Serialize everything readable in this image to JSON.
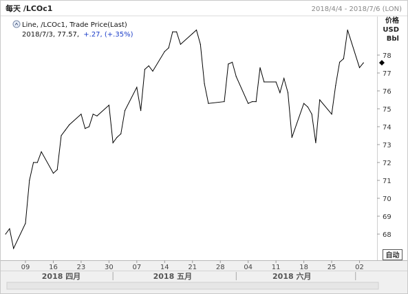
{
  "header": {
    "title": "每天 /LCOc1",
    "date_range": "2018/4/4 - 2018/7/6 (LON)"
  },
  "legend": {
    "series_label": "Line, /LCOc1, Trade Price(Last)",
    "last_point": "2018/7/3, 77.57,",
    "change": "+.27, (+.35%)"
  },
  "axis": {
    "units": [
      "价格",
      "USD",
      "Bbl"
    ],
    "y_ticks": [
      "78",
      "77",
      "76",
      "75",
      "74",
      "73",
      "72",
      "71",
      "70",
      "69",
      "68"
    ],
    "x_ticks": [
      "09",
      "16",
      "23",
      "30",
      "07",
      "14",
      "21",
      "28",
      "04",
      "11",
      "18",
      "25",
      "02"
    ],
    "months": [
      "2018 四月",
      "2018 五月",
      "2018 六月"
    ],
    "auto_button": "自动"
  },
  "colors": {
    "line": "#000000",
    "change_text": "#1a3cc8",
    "frame": "#c8c8c8",
    "axis_bg": "#f0f0f0"
  },
  "chart_data": {
    "type": "line",
    "title": "每天 /LCOc1",
    "xlabel": "",
    "ylabel": "价格 USD Bbl",
    "ylim": [
      67.4,
      79
    ],
    "grid": false,
    "series": [
      {
        "name": "/LCOc1",
        "x": [
          "2018-04-04",
          "2018-04-05",
          "2018-04-06",
          "2018-04-09",
          "2018-04-10",
          "2018-04-11",
          "2018-04-12",
          "2018-04-13",
          "2018-04-16",
          "2018-04-17",
          "2018-04-18",
          "2018-04-19",
          "2018-04-20",
          "2018-04-23",
          "2018-04-24",
          "2018-04-25",
          "2018-04-26",
          "2018-04-27",
          "2018-04-30",
          "2018-05-01",
          "2018-05-02",
          "2018-05-03",
          "2018-05-04",
          "2018-05-07",
          "2018-05-08",
          "2018-05-09",
          "2018-05-10",
          "2018-05-11",
          "2018-05-14",
          "2018-05-15",
          "2018-05-16",
          "2018-05-17",
          "2018-05-18",
          "2018-05-21",
          "2018-05-22",
          "2018-05-23",
          "2018-05-24",
          "2018-05-25",
          "2018-05-29",
          "2018-05-30",
          "2018-05-31",
          "2018-06-01",
          "2018-06-04",
          "2018-06-05",
          "2018-06-06",
          "2018-06-07",
          "2018-06-08",
          "2018-06-11",
          "2018-06-12",
          "2018-06-13",
          "2018-06-14",
          "2018-06-15",
          "2018-06-18",
          "2018-06-19",
          "2018-06-20",
          "2018-06-21",
          "2018-06-22",
          "2018-06-25",
          "2018-06-26",
          "2018-06-27",
          "2018-06-28",
          "2018-06-29",
          "2018-07-02",
          "2018-07-03"
        ],
        "values": [
          68.0,
          68.3,
          67.2,
          68.6,
          71.0,
          72.0,
          72.0,
          72.6,
          71.4,
          71.6,
          73.5,
          73.8,
          74.1,
          74.7,
          73.9,
          74.0,
          74.7,
          74.6,
          75.2,
          73.1,
          73.4,
          73.6,
          74.9,
          76.2,
          74.9,
          77.2,
          77.4,
          77.1,
          78.2,
          78.4,
          79.3,
          79.3,
          78.6,
          79.2,
          79.4,
          78.6,
          76.4,
          75.3,
          75.4,
          77.5,
          77.6,
          76.8,
          75.3,
          75.4,
          75.4,
          77.3,
          76.5,
          76.5,
          75.9,
          76.7,
          75.9,
          73.4,
          75.3,
          75.1,
          74.7,
          73.1,
          75.5,
          74.7,
          76.3,
          77.6,
          77.8,
          79.4,
          77.3,
          77.57
        ]
      }
    ]
  }
}
